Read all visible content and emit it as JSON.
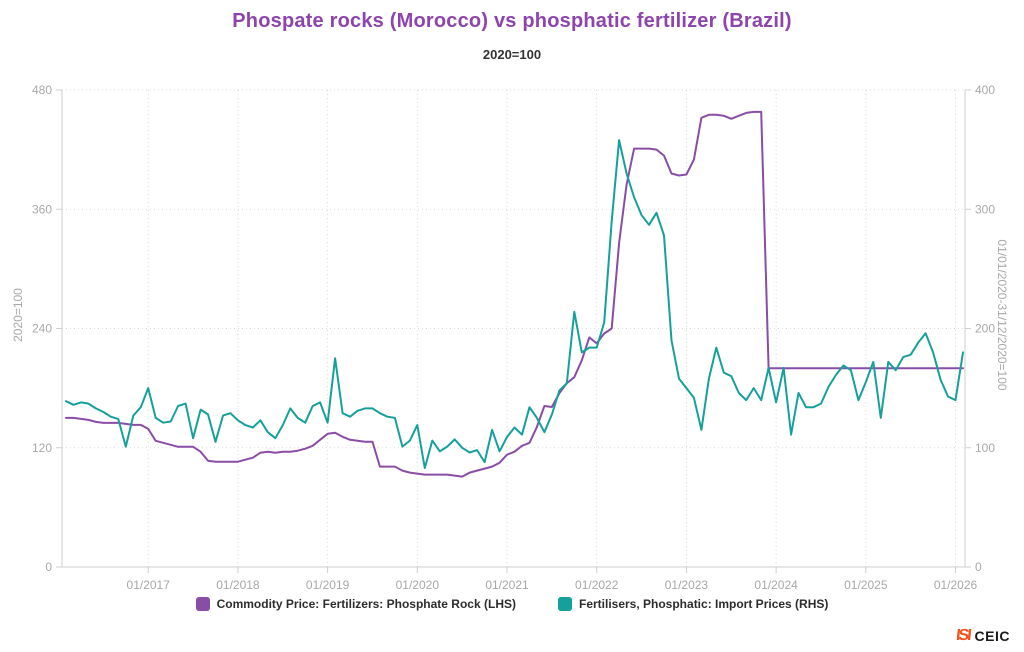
{
  "title": "Phospate rocks (Morocco) vs phosphatic fertilizer (Brazil)",
  "subtitle": "2020=100",
  "left_axis": {
    "title": "2020=100",
    "ticks": [
      0,
      120,
      240,
      360,
      480
    ],
    "max": 480
  },
  "right_axis": {
    "title": "01/01/2020-31/12/2020=100",
    "ticks": [
      0,
      100,
      200,
      300,
      400
    ],
    "max": 400
  },
  "x_axis": {
    "tick_labels": [
      "01/2017",
      "01/2018",
      "01/2019",
      "01/2020",
      "01/2021",
      "01/2022",
      "01/2023",
      "01/2024",
      "01/2025",
      "01/2026"
    ],
    "tick_indices": [
      11,
      23,
      35,
      47,
      59,
      71,
      83,
      95,
      107,
      119
    ]
  },
  "legend": [
    {
      "label": "Commodity Price: Fertilizers: Phosphate Rock (LHS)",
      "color": "#8a4da6"
    },
    {
      "label": "Fertilisers, Phosphatic: Import Prices (RHS)",
      "color": "#16a09b"
    }
  ],
  "logo": {
    "mark": "ISI",
    "text": "CEIC"
  },
  "colors": {
    "title": "#8e44ad",
    "purple_series": "#8a4da6",
    "teal_series": "#16a09b",
    "axis_text": "#a8a8a8",
    "grid": "#d9d9d9",
    "axis_line": "#cfcfcf",
    "legend_text": "#2d2d2d",
    "logo_orange": "#f4511e",
    "logo_dark": "#1a1a1a"
  },
  "chart_data": {
    "type": "line",
    "frequency": "monthly",
    "x_start": "2016-02",
    "x_end": "2026-02",
    "title": "Phospate rocks (Morocco) vs phosphatic fertilizer (Brazil)",
    "subtitle": "2020=100",
    "grid": true,
    "legend_position": "bottom",
    "left_ylim": [
      0,
      480
    ],
    "right_ylim": [
      0,
      400
    ],
    "series": [
      {
        "name": "Commodity Price: Fertilizers: Phosphate Rock (LHS)",
        "axis": "left",
        "color": "#8a4da6",
        "values": [
          150,
          150,
          149,
          148,
          146,
          145,
          145,
          145,
          144,
          143,
          143,
          139,
          127,
          125,
          123,
          121,
          121,
          121,
          116,
          107,
          106,
          106,
          106,
          106,
          108,
          110,
          115,
          116,
          115,
          116,
          116,
          117,
          119,
          122,
          128,
          134,
          135,
          131,
          128,
          127,
          126,
          126,
          101,
          101,
          101,
          97,
          95,
          94,
          93,
          93,
          93,
          93,
          92,
          91,
          95,
          97,
          99,
          101,
          105,
          113,
          116,
          122,
          125,
          141,
          162,
          161,
          175,
          185,
          191,
          208,
          231,
          225,
          235,
          240,
          326,
          385,
          421,
          421,
          421,
          420,
          414,
          396,
          394,
          395,
          410,
          452,
          455,
          455,
          454,
          451,
          454,
          457,
          458,
          458,
          200,
          200,
          200,
          200,
          200,
          200,
          200,
          200,
          200,
          200,
          200,
          200,
          200,
          200,
          200,
          200,
          200,
          200,
          200,
          200,
          200,
          200,
          200,
          200,
          200,
          200,
          200
        ]
      },
      {
        "name": "Fertilisers, Phosphatic: Import Prices (RHS)",
        "axis": "right",
        "color": "#16a09b",
        "values": [
          139,
          136,
          138,
          137,
          133,
          130,
          126,
          124,
          101,
          127,
          134,
          150,
          125,
          121,
          122,
          135,
          137,
          108,
          132,
          128,
          105,
          127,
          129,
          123,
          119,
          117,
          123,
          113,
          108,
          119,
          133,
          125,
          121,
          135,
          138,
          121,
          175,
          129,
          126,
          131,
          133,
          133,
          129,
          126,
          125,
          101,
          106,
          119,
          83,
          106,
          97,
          101,
          107,
          100,
          96,
          98,
          88,
          115,
          97,
          109,
          117,
          111,
          134,
          125,
          113,
          128,
          148,
          154,
          214,
          180,
          184,
          184,
          205,
          290,
          358,
          330,
          310,
          295,
          287,
          297,
          278,
          190,
          158,
          150,
          142,
          115,
          158,
          184,
          163,
          160,
          146,
          140,
          150,
          140,
          167,
          138,
          167,
          111,
          146,
          134,
          134,
          137,
          151,
          161,
          169,
          165,
          140,
          155,
          172,
          125,
          172,
          165,
          176,
          178,
          188,
          196,
          180,
          157,
          143,
          140,
          180
        ]
      }
    ]
  }
}
